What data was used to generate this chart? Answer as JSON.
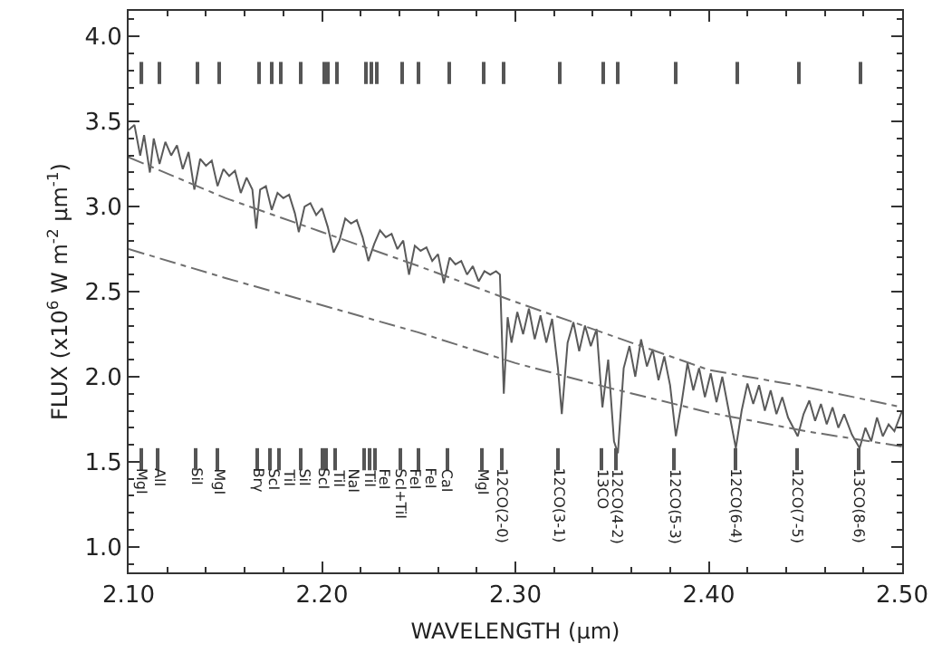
{
  "chart_data": {
    "type": "line",
    "xlabel": "WAVELENGTH (µm)",
    "ylabel": "FLUX (x10$^{6}$ W m$^{-2}$ µm$^{-1}$)",
    "xlim": [
      2.1,
      2.5
    ],
    "xticks": [
      {
        "value": 2.1,
        "label": "2.10"
      },
      {
        "value": 2.2,
        "label": "2.20"
      },
      {
        "value": 2.3,
        "label": "2.30"
      },
      {
        "value": 2.4,
        "label": "2.40"
      },
      {
        "value": 2.5,
        "label": "2.50"
      }
    ],
    "ylim": [
      0.85,
      4.15
    ],
    "yticks": [
      {
        "value": 1.0,
        "label": "1.0"
      },
      {
        "value": 1.5,
        "label": "1.5"
      },
      {
        "value": 2.0,
        "label": "2.0"
      },
      {
        "value": 2.5,
        "label": "2.5"
      },
      {
        "value": 3.0,
        "label": "3.0"
      },
      {
        "value": 3.5,
        "label": "3.5"
      },
      {
        "value": 4.0,
        "label": "4.0"
      }
    ],
    "marker": "none",
    "series": [
      {
        "color": "#5a5a5a",
        "line_style": "solid",
        "x": [
          2.1,
          2.103,
          2.106,
          2.108,
          2.111,
          2.113,
          2.116,
          2.119,
          2.122,
          2.125,
          2.128,
          2.131,
          2.134,
          2.137,
          2.14,
          2.143,
          2.146,
          2.149,
          2.152,
          2.155,
          2.158,
          2.161,
          2.164,
          2.166,
          2.168,
          2.171,
          2.174,
          2.177,
          2.18,
          2.183,
          2.186,
          2.188,
          2.191,
          2.194,
          2.197,
          2.2,
          2.203,
          2.206,
          2.209,
          2.212,
          2.215,
          2.218,
          2.221,
          2.224,
          2.227,
          2.23,
          2.233,
          2.236,
          2.239,
          2.242,
          2.245,
          2.248,
          2.251,
          2.254,
          2.257,
          2.26,
          2.263,
          2.266,
          2.269,
          2.272,
          2.275,
          2.278,
          2.281,
          2.284,
          2.287,
          2.29,
          2.292,
          2.294,
          2.296,
          2.298,
          2.301,
          2.304,
          2.307,
          2.31,
          2.313,
          2.316,
          2.319,
          2.322,
          2.324,
          2.327,
          2.33,
          2.333,
          2.336,
          2.339,
          2.342,
          2.345,
          2.348,
          2.351,
          2.353,
          2.356,
          2.359,
          2.362,
          2.365,
          2.368,
          2.371,
          2.374,
          2.377,
          2.38,
          2.383,
          2.386,
          2.389,
          2.392,
          2.395,
          2.398,
          2.401,
          2.404,
          2.407,
          2.41,
          2.414,
          2.417,
          2.42,
          2.423,
          2.426,
          2.429,
          2.432,
          2.435,
          2.438,
          2.441,
          2.446,
          2.449,
          2.452,
          2.455,
          2.458,
          2.461,
          2.464,
          2.467,
          2.47,
          2.474,
          2.478,
          2.481,
          2.484,
          2.487,
          2.49,
          2.493,
          2.496,
          2.5
        ],
        "values": [
          3.45,
          3.48,
          3.3,
          3.42,
          3.2,
          3.4,
          3.25,
          3.38,
          3.3,
          3.36,
          3.22,
          3.32,
          3.1,
          3.28,
          3.24,
          3.27,
          3.12,
          3.22,
          3.18,
          3.21,
          3.08,
          3.17,
          3.1,
          2.87,
          3.1,
          3.12,
          2.98,
          3.08,
          3.05,
          3.07,
          2.96,
          2.85,
          3.0,
          3.02,
          2.95,
          2.99,
          2.88,
          2.73,
          2.8,
          2.93,
          2.9,
          2.92,
          2.82,
          2.68,
          2.78,
          2.86,
          2.82,
          2.84,
          2.75,
          2.8,
          2.6,
          2.77,
          2.74,
          2.76,
          2.68,
          2.72,
          2.55,
          2.7,
          2.66,
          2.68,
          2.6,
          2.65,
          2.56,
          2.62,
          2.6,
          2.62,
          2.6,
          1.9,
          2.35,
          2.2,
          2.38,
          2.25,
          2.4,
          2.22,
          2.36,
          2.2,
          2.34,
          2.05,
          1.78,
          2.2,
          2.32,
          2.15,
          2.3,
          2.18,
          2.28,
          1.82,
          2.1,
          1.62,
          1.55,
          2.05,
          2.18,
          2.0,
          2.22,
          2.06,
          2.16,
          1.98,
          2.12,
          1.95,
          1.65,
          1.85,
          2.08,
          1.92,
          2.05,
          1.88,
          2.02,
          1.85,
          2.0,
          1.82,
          1.58,
          1.8,
          1.96,
          1.84,
          1.95,
          1.8,
          1.92,
          1.78,
          1.88,
          1.76,
          1.65,
          1.78,
          1.86,
          1.74,
          1.84,
          1.72,
          1.82,
          1.7,
          1.78,
          1.66,
          1.58,
          1.7,
          1.62,
          1.76,
          1.65,
          1.72,
          1.68,
          1.8
        ]
      },
      {
        "color": "#6e6e6e",
        "line_style": "dashdot",
        "x": [
          2.1,
          2.15,
          2.2,
          2.25,
          2.3,
          2.35,
          2.4,
          2.45,
          2.5
        ],
        "values": [
          3.29,
          3.05,
          2.85,
          2.65,
          2.44,
          2.24,
          2.04,
          1.94,
          1.82
        ]
      },
      {
        "color": "#6e6e6e",
        "line_style": "dashdot",
        "x": [
          2.1,
          2.15,
          2.2,
          2.25,
          2.3,
          2.35,
          2.4,
          2.45,
          2.5
        ],
        "values": [
          2.75,
          2.58,
          2.42,
          2.26,
          2.08,
          1.93,
          1.79,
          1.68,
          1.59
        ]
      },
      {
        "type": "bar",
        "color": "#555555",
        "x": [
          2.1066,
          2.1159,
          2.135,
          2.1466,
          2.1668,
          2.174,
          2.178,
          2.189,
          2.2005,
          2.2028,
          2.2074,
          2.2224,
          2.2255,
          2.2277,
          2.2412,
          2.2499,
          2.265,
          2.2833,
          2.2935,
          2.3227,
          2.345,
          2.3525,
          2.3829,
          2.4142,
          2.4461,
          2.478
        ],
        "base": [
          1.45,
          1.45,
          1.45,
          1.45,
          1.45,
          1.45,
          1.45,
          1.45,
          1.45,
          1.45,
          1.45,
          1.45,
          1.45,
          1.45,
          1.45,
          1.45,
          1.45,
          1.45,
          1.45,
          1.45,
          1.45,
          1.45,
          1.45,
          1.45,
          1.45,
          1.45
        ],
        "values": [
          0.13,
          0.13,
          0.13,
          0.13,
          0.13,
          0.13,
          0.13,
          0.13,
          0.13,
          0.13,
          0.13,
          0.13,
          0.13,
          0.13,
          0.13,
          0.13,
          0.13,
          0.13,
          0.13,
          0.13,
          0.13,
          0.13,
          0.13,
          0.13,
          0.13,
          0.13
        ]
      },
      {
        "type": "bar",
        "color": "#555555",
        "x": [
          2.1066,
          2.1159,
          2.135,
          2.1466,
          2.1668,
          2.174,
          2.178,
          2.189,
          2.2005,
          2.2028,
          2.2074,
          2.2224,
          2.2255,
          2.2277,
          2.2412,
          2.2499,
          2.265,
          2.2833,
          2.2935,
          2.3227,
          2.345,
          2.3525,
          2.3829,
          2.4142,
          2.4461,
          2.478
        ],
        "base": [
          3.72,
          3.72,
          3.72,
          3.72,
          3.72,
          3.72,
          3.72,
          3.72,
          3.72,
          3.72,
          3.72,
          3.72,
          3.72,
          3.72,
          3.72,
          3.72,
          3.72,
          3.72,
          3.72,
          3.72,
          3.72,
          3.72,
          3.72,
          3.72,
          3.72,
          3.72
        ],
        "values": [
          0.13,
          0.13,
          0.13,
          0.13,
          0.13,
          0.13,
          0.13,
          0.13,
          0.13,
          0.13,
          0.13,
          0.13,
          0.13,
          0.13,
          0.13,
          0.13,
          0.13,
          0.13,
          0.13,
          0.13,
          0.13,
          0.13,
          0.13,
          0.13,
          0.13,
          0.13
        ]
      }
    ],
    "annotations": [
      {
        "text": "MgI",
        "x": 2.1066,
        "y": 1.515
      },
      {
        "text": "AlI",
        "x": 2.1159,
        "y": 1.515
      },
      {
        "text": "SiI",
        "x": 2.135,
        "y": 1.515
      },
      {
        "text": "MgI",
        "x": 2.1466,
        "y": 1.515
      },
      {
        "text": "Brγ",
        "x": 2.1668,
        "y": 1.515
      },
      {
        "text": "ScI",
        "x": 2.174,
        "y": 1.515
      },
      {
        "text": "TiI",
        "x": 2.178,
        "y": 1.515
      },
      {
        "text": "SiI",
        "x": 2.189,
        "y": 1.515
      },
      {
        "text": "ScI",
        "x": 2.2005,
        "y": 1.515
      },
      {
        "text": "TiI",
        "x": 2.2028,
        "y": 1.515
      },
      {
        "text": "NaI",
        "x": 2.2074,
        "y": 1.515
      },
      {
        "text": "TiI",
        "x": 2.2224,
        "y": 1.515
      },
      {
        "text": "FeI",
        "x": 2.2255,
        "y": 1.515
      },
      {
        "text": "ScI+TiI",
        "x": 2.2277,
        "y": 1.515
      },
      {
        "text": "FeI",
        "x": 2.2412,
        "y": 1.515
      },
      {
        "text": "FeI",
        "x": 2.2499,
        "y": 1.515
      },
      {
        "text": "CaI",
        "x": 2.265,
        "y": 1.515
      },
      {
        "text": "MgI",
        "x": 2.2833,
        "y": 1.515
      },
      {
        "text": "12CO(2-0)",
        "x": 2.2935,
        "y": 1.515
      },
      {
        "text": "12CO(3-1)",
        "x": 2.3227,
        "y": 1.515
      },
      {
        "text": "13CO",
        "x": 2.345,
        "y": 1.515
      },
      {
        "text": "12CO(4-2)",
        "x": 2.3525,
        "y": 1.515
      },
      {
        "text": "12CO(5-3)",
        "x": 2.3829,
        "y": 1.515
      },
      {
        "text": "12CO(6-4)",
        "x": 2.4142,
        "y": 1.515
      },
      {
        "text": "12CO(7-5)",
        "x": 2.4461,
        "y": 1.515
      },
      {
        "text": "13CO(8-6)",
        "x": 2.478,
        "y": 1.515
      }
    ]
  }
}
